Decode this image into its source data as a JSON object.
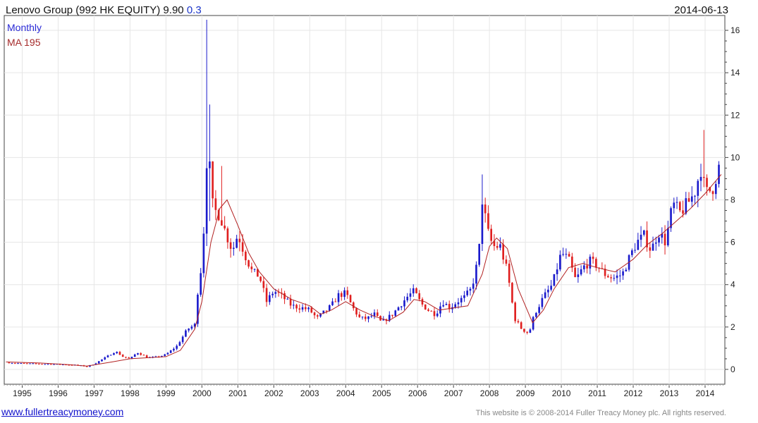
{
  "header": {
    "title": "Lenovo Group (992 HK EQUITY) 9.90",
    "change": "0.3",
    "date": "2014-06-13"
  },
  "footer": {
    "link": "www.fullertreacymoney.com",
    "copyright": "This website is © 2008-2014 Fuller Treacy Money plc. All rights reserved."
  },
  "chart_data": {
    "type": "candlestick",
    "xlim": [
      1994.5,
      2014.55
    ],
    "ylim": [
      -0.7,
      16.7
    ],
    "x_ticks": [
      1995,
      1996,
      1997,
      1998,
      1999,
      2000,
      2001,
      2002,
      2003,
      2004,
      2005,
      2006,
      2007,
      2008,
      2009,
      2010,
      2011,
      2012,
      2013,
      2014
    ],
    "y_ticks": [
      0,
      2,
      4,
      6,
      8,
      10,
      12,
      14,
      16
    ],
    "legend": [
      "Monthly",
      "MA 195"
    ],
    "colors": {
      "up": "#1a1acc",
      "down": "#e01f1f",
      "ma": "#b22222",
      "grid": "#e6e6e6",
      "axis": "#444444"
    },
    "anchors": [
      [
        1994.55,
        0.32
      ],
      [
        1995.0,
        0.28
      ],
      [
        1995.5,
        0.26
      ],
      [
        1996.0,
        0.24
      ],
      [
        1996.5,
        0.2
      ],
      [
        1996.8,
        0.14
      ],
      [
        1997.0,
        0.25
      ],
      [
        1997.3,
        0.55
      ],
      [
        1997.6,
        0.85
      ],
      [
        1997.8,
        0.6
      ],
      [
        1998.0,
        0.5
      ],
      [
        1998.2,
        0.8
      ],
      [
        1998.5,
        0.55
      ],
      [
        1998.8,
        0.6
      ],
      [
        1999.0,
        0.7
      ],
      [
        1999.3,
        1.1
      ],
      [
        1999.6,
        1.9
      ],
      [
        1999.8,
        2.1
      ],
      [
        1999.9,
        4.0
      ],
      [
        2000.0,
        5.0
      ],
      [
        2000.08,
        7.5
      ],
      [
        2000.17,
        11.5
      ],
      [
        2000.25,
        8.0
      ],
      [
        2000.35,
        7.5
      ],
      [
        2000.5,
        7.3
      ],
      [
        2000.65,
        6.5
      ],
      [
        2000.85,
        5.6
      ],
      [
        2001.0,
        6.4
      ],
      [
        2001.2,
        5.4
      ],
      [
        2001.4,
        4.6
      ],
      [
        2001.6,
        4.4
      ],
      [
        2001.8,
        3.2
      ],
      [
        2002.0,
        3.7
      ],
      [
        2002.2,
        3.5
      ],
      [
        2002.5,
        3.0
      ],
      [
        2002.8,
        2.9
      ],
      [
        2003.0,
        2.8
      ],
      [
        2003.2,
        2.4
      ],
      [
        2003.4,
        2.7
      ],
      [
        2003.6,
        3.0
      ],
      [
        2003.8,
        3.5
      ],
      [
        2004.0,
        3.6
      ],
      [
        2004.2,
        2.9
      ],
      [
        2004.4,
        2.4
      ],
      [
        2004.6,
        2.4
      ],
      [
        2004.8,
        2.6
      ],
      [
        2005.0,
        2.2
      ],
      [
        2005.3,
        2.6
      ],
      [
        2005.5,
        3.0
      ],
      [
        2005.7,
        3.4
      ],
      [
        2005.9,
        3.7
      ],
      [
        2006.1,
        3.1
      ],
      [
        2006.3,
        2.8
      ],
      [
        2006.5,
        2.6
      ],
      [
        2006.7,
        3.2
      ],
      [
        2006.9,
        2.9
      ],
      [
        2007.1,
        3.2
      ],
      [
        2007.3,
        3.4
      ],
      [
        2007.5,
        3.8
      ],
      [
        2007.7,
        5.3
      ],
      [
        2007.8,
        8.0
      ],
      [
        2007.95,
        6.5
      ],
      [
        2008.1,
        5.8
      ],
      [
        2008.3,
        5.8
      ],
      [
        2008.5,
        4.6
      ],
      [
        2008.7,
        2.4
      ],
      [
        2008.9,
        1.9
      ],
      [
        2009.1,
        1.7
      ],
      [
        2009.25,
        2.6
      ],
      [
        2009.5,
        3.4
      ],
      [
        2009.75,
        4.0
      ],
      [
        2010.0,
        5.5
      ],
      [
        2010.2,
        5.2
      ],
      [
        2010.4,
        4.2
      ],
      [
        2010.6,
        4.8
      ],
      [
        2010.8,
        5.1
      ],
      [
        2011.0,
        4.9
      ],
      [
        2011.2,
        4.5
      ],
      [
        2011.45,
        4.3
      ],
      [
        2011.7,
        4.5
      ],
      [
        2011.9,
        5.3
      ],
      [
        2012.1,
        6.0
      ],
      [
        2012.3,
        6.3
      ],
      [
        2012.5,
        5.6
      ],
      [
        2012.7,
        6.5
      ],
      [
        2012.9,
        6.0
      ],
      [
        2013.1,
        7.8
      ],
      [
        2013.3,
        7.4
      ],
      [
        2013.5,
        7.8
      ],
      [
        2013.7,
        8.3
      ],
      [
        2013.9,
        9.6
      ],
      [
        2014.0,
        8.3
      ],
      [
        2014.2,
        8.5
      ],
      [
        2014.45,
        9.9
      ]
    ],
    "spikes": [
      {
        "x": 2000.17,
        "high": 16.5,
        "low": 6.5
      },
      {
        "x": 2000.25,
        "high": 12.5,
        "low": 7.0
      },
      {
        "x": 2000.6,
        "high": 9.6,
        "low": 6.8
      },
      {
        "x": 2007.87,
        "high": 9.2,
        "low": 7.0
      },
      {
        "x": 2014.0,
        "high": 11.3,
        "low": 8.6
      }
    ],
    "ma_points": [
      [
        1994.55,
        0.35
      ],
      [
        1995.5,
        0.3
      ],
      [
        1996.3,
        0.22
      ],
      [
        1996.8,
        0.16
      ],
      [
        1997.5,
        0.35
      ],
      [
        1998.0,
        0.5
      ],
      [
        1998.5,
        0.55
      ],
      [
        1999.0,
        0.6
      ],
      [
        1999.4,
        0.9
      ],
      [
        1999.8,
        1.9
      ],
      [
        2000.0,
        3.2
      ],
      [
        2000.25,
        6.0
      ],
      [
        2000.5,
        7.6
      ],
      [
        2000.7,
        8.0
      ],
      [
        2001.0,
        6.8
      ],
      [
        2001.3,
        5.5
      ],
      [
        2001.6,
        4.6
      ],
      [
        2002.0,
        3.8
      ],
      [
        2002.5,
        3.3
      ],
      [
        2003.0,
        3.0
      ],
      [
        2003.3,
        2.6
      ],
      [
        2003.6,
        2.8
      ],
      [
        2004.0,
        3.2
      ],
      [
        2004.4,
        2.8
      ],
      [
        2004.8,
        2.5
      ],
      [
        2005.2,
        2.3
      ],
      [
        2005.6,
        2.7
      ],
      [
        2005.9,
        3.3
      ],
      [
        2006.2,
        3.2
      ],
      [
        2006.6,
        2.8
      ],
      [
        2007.0,
        2.9
      ],
      [
        2007.4,
        3.0
      ],
      [
        2007.8,
        4.5
      ],
      [
        2008.0,
        5.8
      ],
      [
        2008.2,
        6.2
      ],
      [
        2008.5,
        5.7
      ],
      [
        2008.8,
        3.8
      ],
      [
        2009.2,
        2.2
      ],
      [
        2009.5,
        2.8
      ],
      [
        2009.8,
        3.8
      ],
      [
        2010.2,
        4.8
      ],
      [
        2010.6,
        5.0
      ],
      [
        2011.0,
        4.8
      ],
      [
        2011.5,
        4.6
      ],
      [
        2012.0,
        5.2
      ],
      [
        2012.4,
        5.9
      ],
      [
        2012.8,
        6.4
      ],
      [
        2013.2,
        7.0
      ],
      [
        2013.6,
        7.6
      ],
      [
        2014.0,
        8.3
      ],
      [
        2014.45,
        9.2
      ]
    ]
  }
}
